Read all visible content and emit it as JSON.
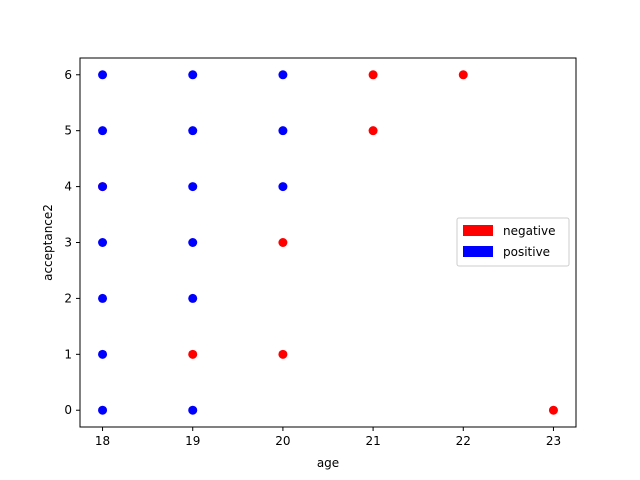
{
  "chart_data": {
    "type": "scatter",
    "title": "",
    "xlabel": "age",
    "ylabel": "acceptance2",
    "xlim": [
      17.75,
      23.25
    ],
    "ylim": [
      -0.3,
      6.3
    ],
    "xticks": [
      18,
      19,
      20,
      21,
      22,
      23
    ],
    "yticks": [
      0,
      1,
      2,
      3,
      4,
      5,
      6
    ],
    "grid": false,
    "legend_position": "center-right",
    "series": [
      {
        "name": "negative",
        "color": "#ff0000",
        "points": [
          [
            18,
            4
          ],
          [
            19,
            1
          ],
          [
            20,
            1
          ],
          [
            20,
            3
          ],
          [
            21,
            5
          ],
          [
            21,
            6
          ],
          [
            22,
            6
          ],
          [
            23,
            0
          ]
        ]
      },
      {
        "name": "positive",
        "color": "#0000ff",
        "points": [
          [
            18,
            0
          ],
          [
            18,
            1
          ],
          [
            18,
            2
          ],
          [
            18,
            3
          ],
          [
            18,
            4
          ],
          [
            18,
            5
          ],
          [
            18,
            6
          ],
          [
            19,
            0
          ],
          [
            19,
            2
          ],
          [
            19,
            3
          ],
          [
            19,
            4
          ],
          [
            19,
            5
          ],
          [
            19,
            6
          ],
          [
            20,
            4
          ],
          [
            20,
            5
          ],
          [
            20,
            6
          ]
        ]
      }
    ]
  }
}
